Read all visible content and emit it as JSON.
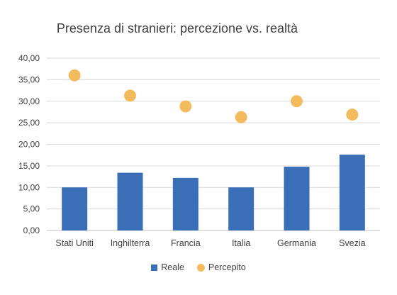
{
  "chart_data": {
    "type": "bar",
    "title": "Presenza di stranieri: percezione vs. realtà",
    "categories": [
      "Stati Uniti",
      "Inghilterra",
      "Francia",
      "Italia",
      "Germania",
      "Svezia"
    ],
    "series": [
      {
        "name": "Reale",
        "kind": "bar",
        "color": "#3a6fb7",
        "values": [
          10.0,
          13.4,
          12.2,
          10.0,
          14.8,
          17.6
        ]
      },
      {
        "name": "Percepito",
        "kind": "dot",
        "color": "#f4bb5e",
        "values": [
          36.0,
          31.3,
          28.8,
          26.3,
          30.0,
          26.9
        ]
      }
    ],
    "ylim": [
      0,
      40
    ],
    "yticks": [
      "0,00",
      "5,00",
      "10,00",
      "15,00",
      "20,00",
      "25,00",
      "30,00",
      "35,00",
      "40,00"
    ],
    "grid": true,
    "legend_position": "bottom"
  }
}
